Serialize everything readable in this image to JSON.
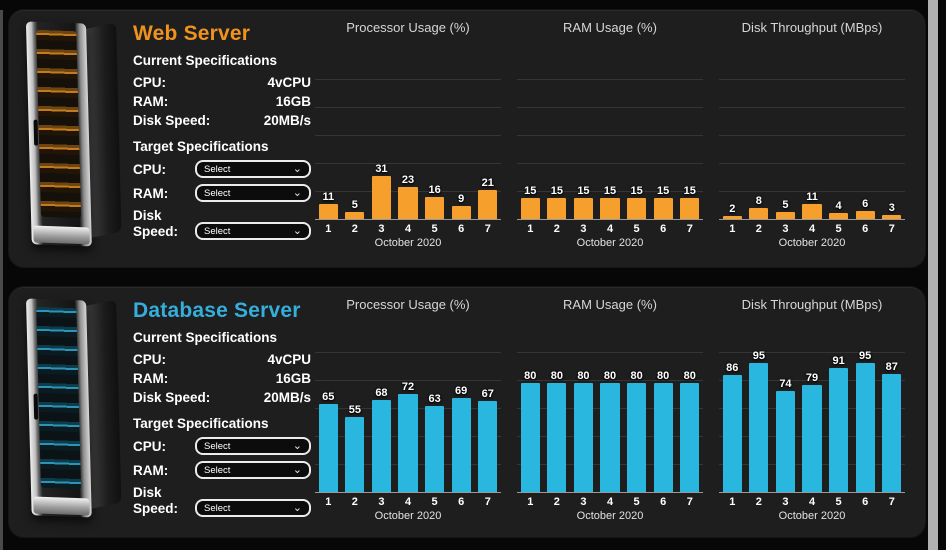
{
  "servers": [
    {
      "name": "Web Server",
      "accent_color": "#F0931E",
      "bar_color": "#F79F2D",
      "current": {
        "heading": "Current Specifications",
        "rows": [
          {
            "label": "CPU:",
            "value": "4vCPU"
          },
          {
            "label": "RAM:",
            "value": "16GB"
          },
          {
            "label": "Disk Speed:",
            "value": "20MB/s"
          }
        ]
      },
      "target": {
        "heading": "Target Specifications",
        "rows": [
          {
            "label": "CPU:",
            "value": "Select"
          },
          {
            "label": "RAM:",
            "value": "Select"
          },
          {
            "label": "Disk Speed:",
            "value": "Select"
          }
        ]
      }
    },
    {
      "name": "Database Server",
      "accent_color": "#35AEDC",
      "bar_color": "#29B7DF",
      "current": {
        "heading": "Current Specifications",
        "rows": [
          {
            "label": "CPU:",
            "value": "4vCPU"
          },
          {
            "label": "RAM:",
            "value": "16GB"
          },
          {
            "label": "Disk Speed:",
            "value": "20MB/s"
          }
        ]
      },
      "target": {
        "heading": "Target Specifications",
        "rows": [
          {
            "label": "CPU:",
            "value": "Select"
          },
          {
            "label": "RAM:",
            "value": "Select"
          },
          {
            "label": "Disk Speed:",
            "value": "Select"
          }
        ]
      }
    }
  ],
  "chart_data": [
    {
      "type": "bar",
      "server": "Web Server",
      "title": "Processor Usage (%)",
      "categories": [
        "1",
        "2",
        "3",
        "4",
        "5",
        "6",
        "7"
      ],
      "values": [
        11,
        5,
        31,
        23,
        16,
        9,
        21
      ],
      "xlabel": "October 2020",
      "ylabel": "",
      "ylim": [
        0,
        120
      ],
      "grid": true,
      "gridline_step": 20,
      "legend": "none",
      "bar_color": "#F79F2D"
    },
    {
      "type": "bar",
      "server": "Web Server",
      "title": "RAM Usage (%)",
      "categories": [
        "1",
        "2",
        "3",
        "4",
        "5",
        "6",
        "7"
      ],
      "values": [
        15,
        15,
        15,
        15,
        15,
        15,
        15
      ],
      "xlabel": "October 2020",
      "ylabel": "",
      "ylim": [
        0,
        120
      ],
      "grid": true,
      "gridline_step": 20,
      "legend": "none",
      "bar_color": "#F79F2D"
    },
    {
      "type": "bar",
      "server": "Web Server",
      "title": "Disk Throughput (MBps)",
      "categories": [
        "1",
        "2",
        "3",
        "4",
        "5",
        "6",
        "7"
      ],
      "values": [
        2,
        8,
        5,
        11,
        4,
        6,
        3
      ],
      "xlabel": "October 2020",
      "ylabel": "",
      "ylim": [
        0,
        120
      ],
      "grid": true,
      "gridline_step": 20,
      "legend": "none",
      "bar_color": "#F79F2D"
    },
    {
      "type": "bar",
      "server": "Database Server",
      "title": "Processor Usage (%)",
      "categories": [
        "1",
        "2",
        "3",
        "4",
        "5",
        "6",
        "7"
      ],
      "values": [
        65,
        55,
        68,
        72,
        63,
        69,
        67
      ],
      "xlabel": "October 2020",
      "ylabel": "",
      "ylim": [
        0,
        120
      ],
      "grid": true,
      "gridline_step": 20,
      "legend": "none",
      "bar_color": "#29B7DF"
    },
    {
      "type": "bar",
      "server": "Database Server",
      "title": "RAM Usage (%)",
      "categories": [
        "1",
        "2",
        "3",
        "4",
        "5",
        "6",
        "7"
      ],
      "values": [
        80,
        80,
        80,
        80,
        80,
        80,
        80
      ],
      "xlabel": "October 2020",
      "ylabel": "",
      "ylim": [
        0,
        120
      ],
      "grid": true,
      "gridline_step": 20,
      "legend": "none",
      "bar_color": "#29B7DF"
    },
    {
      "type": "bar",
      "server": "Database Server",
      "title": "Disk Throughput (MBps)",
      "categories": [
        "1",
        "2",
        "3",
        "4",
        "5",
        "6",
        "7"
      ],
      "values": [
        86,
        95,
        74,
        79,
        91,
        95,
        87
      ],
      "xlabel": "October 2020",
      "ylabel": "",
      "ylim": [
        0,
        120
      ],
      "grid": true,
      "gridline_step": 20,
      "legend": "none",
      "bar_color": "#29B7DF"
    }
  ],
  "dropdown": {
    "chevron": "⌄"
  }
}
